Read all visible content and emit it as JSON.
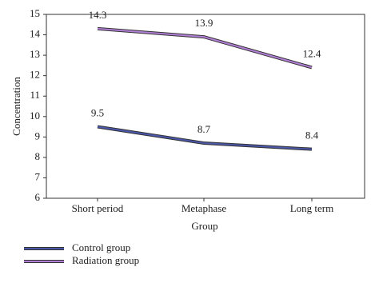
{
  "chart_data": {
    "type": "line",
    "x_label": "Group",
    "y_label": "Concentration",
    "categories": [
      "Short period",
      "Metaphase",
      "Long term"
    ],
    "series": [
      {
        "name": "Control group",
        "color": "#4b57a8",
        "values": [
          9.5,
          8.7,
          8.4
        ]
      },
      {
        "name": "Radiation group",
        "color": "#b27fd6",
        "values": [
          14.3,
          13.9,
          12.4
        ]
      }
    ],
    "ylim": [
      6,
      15
    ],
    "yticks": [
      6,
      7,
      8,
      9,
      10,
      11,
      12,
      13,
      14,
      15
    ]
  }
}
